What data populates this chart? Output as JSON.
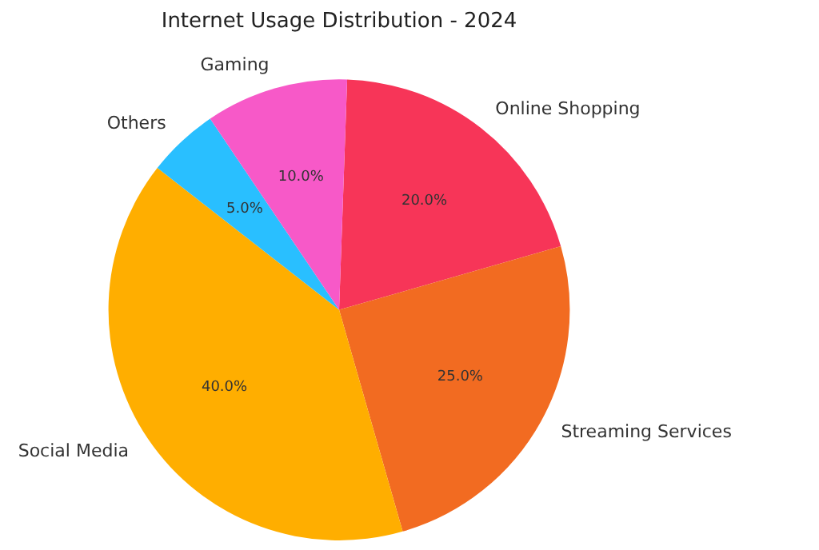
{
  "chart_data": {
    "type": "pie",
    "title": "Internet Usage Distribution - 2024",
    "categories": [
      "Online Shopping",
      "Streaming Services",
      "Social Media",
      "Others",
      "Gaming"
    ],
    "values": [
      20,
      25,
      40,
      5,
      10
    ],
    "value_labels": [
      "20.0%",
      "25.0%",
      "40.0%",
      "5.0%",
      "10.0%"
    ],
    "colors": [
      "#f73558",
      "#f26b21",
      "#ffae00",
      "#29bfff",
      "#f759c8"
    ],
    "legend": false
  }
}
